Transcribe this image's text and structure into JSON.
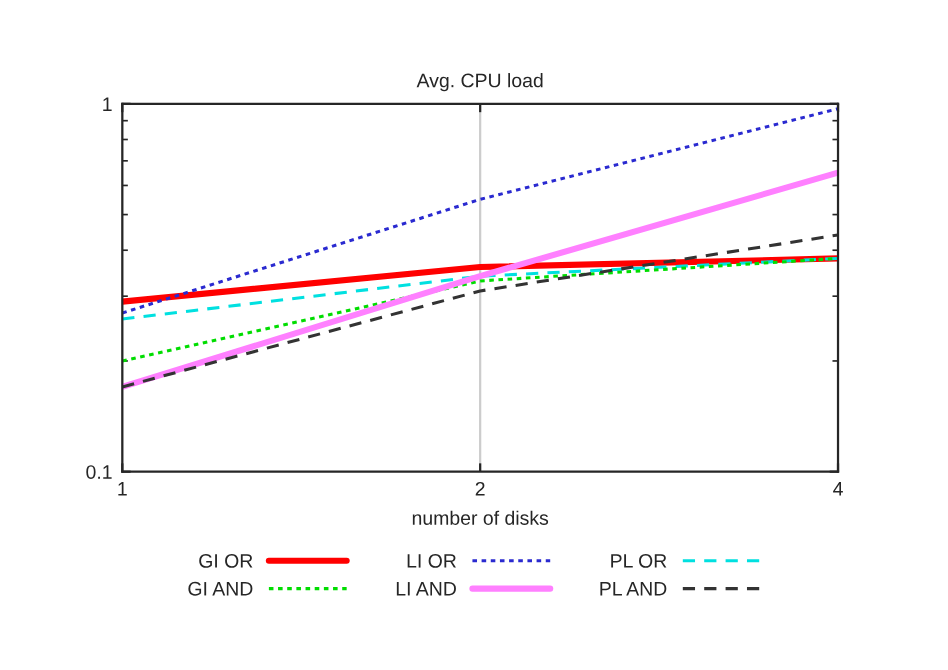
{
  "chart_data": {
    "type": "line",
    "title": "Avg. CPU load",
    "xlabel": "number of disks",
    "x": [
      1,
      2,
      4
    ],
    "log": "xy",
    "xlim": [
      1,
      4
    ],
    "xticks": [
      1,
      2,
      4
    ],
    "ylim": [
      0.1,
      1
    ],
    "yticks": [
      0.1,
      1
    ],
    "grid": "x",
    "legend": "bottom",
    "marker": "none",
    "series": [
      {
        "name": "GI OR",
        "color": "#ff0000",
        "line_style": "solid",
        "values": [
          0.29,
          0.36,
          0.38
        ]
      },
      {
        "name": "LI OR",
        "color": "#2a2ad0",
        "line_style": "dotted",
        "values": [
          0.27,
          0.55,
          0.97
        ]
      },
      {
        "name": "PL OR",
        "color": "#00e0e0",
        "line_style": "dashed",
        "values": [
          0.26,
          0.34,
          0.38
        ]
      },
      {
        "name": "GI AND",
        "color": "#00dd00",
        "line_style": "dotted",
        "values": [
          0.2,
          0.33,
          0.38
        ]
      },
      {
        "name": "LI AND",
        "color": "#ff80ff",
        "line_style": "solid",
        "values": [
          0.17,
          0.34,
          0.65
        ]
      },
      {
        "name": "PL AND",
        "color": "#333333",
        "line_style": "dashed",
        "values": [
          0.17,
          0.31,
          0.44
        ]
      }
    ]
  }
}
